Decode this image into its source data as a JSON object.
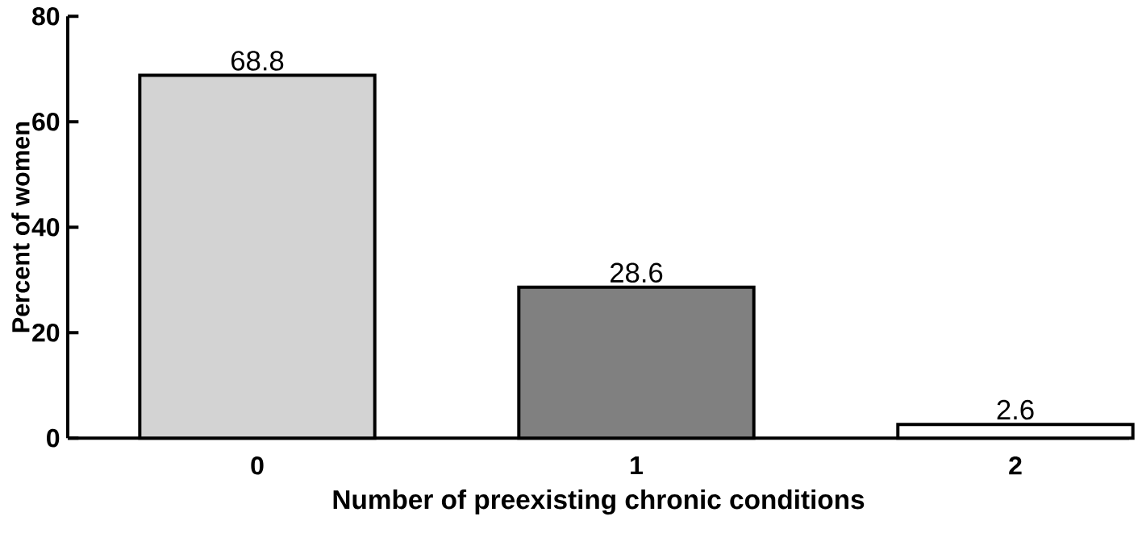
{
  "chart_data": {
    "type": "bar",
    "xlabel": "Number of preexisting chronic conditions",
    "ylabel": "Percent of women",
    "categories": [
      "0",
      "1",
      "2"
    ],
    "values": [
      68.8,
      28.6,
      2.6
    ],
    "colors": [
      "#d3d3d3",
      "#808080",
      "#ffffff"
    ],
    "ylim": [
      0,
      80
    ],
    "yticks": [
      0,
      20,
      40,
      60,
      80
    ],
    "grid": false,
    "data_labels": true
  }
}
